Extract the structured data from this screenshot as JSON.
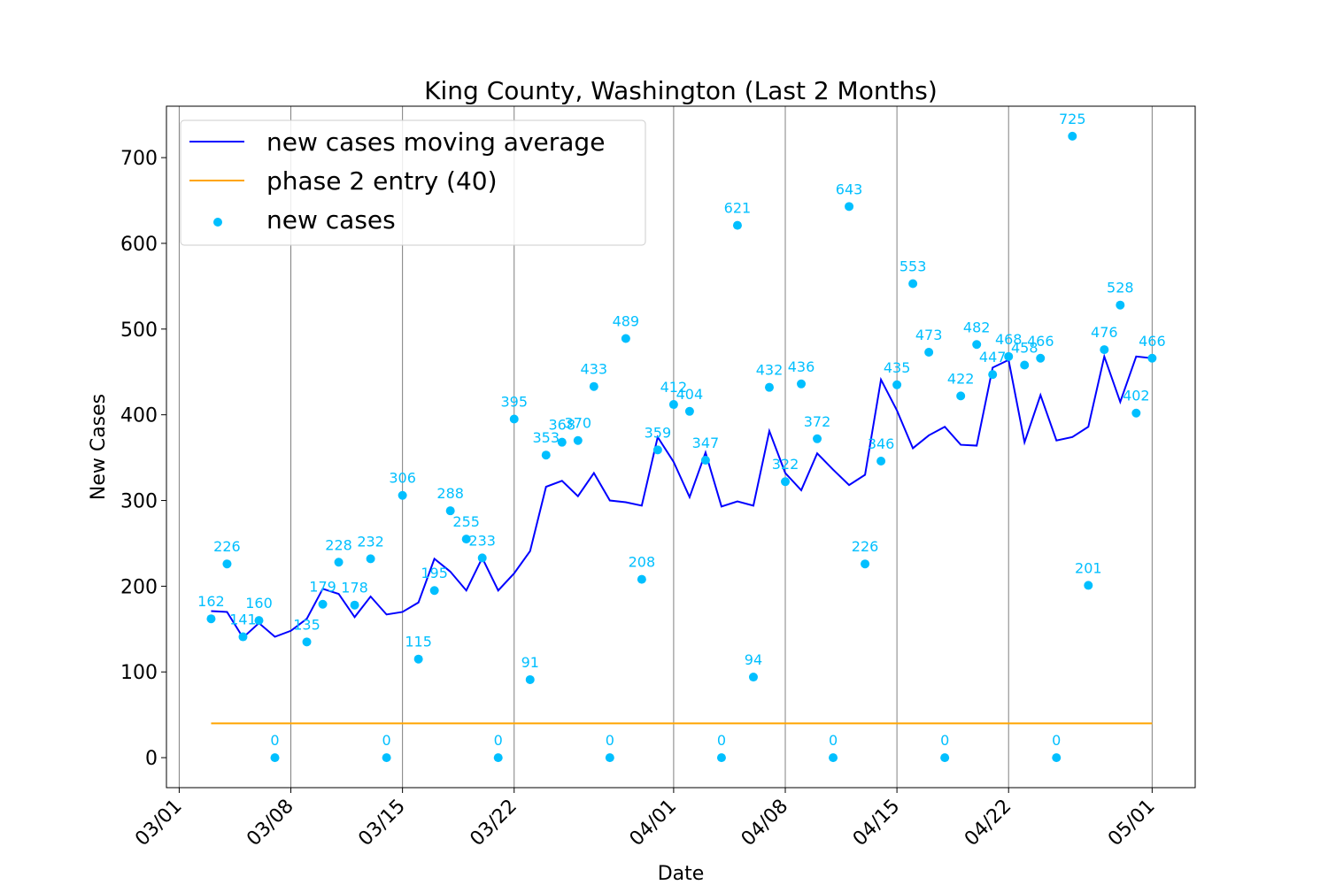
{
  "chart_data": {
    "type": "line",
    "title": "King County, Washington (Last 2 Months)",
    "xlabel": "Date",
    "ylabel": "New Cases",
    "x_is_date": true,
    "year": 2020,
    "xlim": [
      "2020-03-01",
      "2020-05-01"
    ],
    "ylim": [
      -35,
      760
    ],
    "yticks": [
      0,
      100,
      200,
      300,
      400,
      500,
      600,
      700
    ],
    "xticks": [
      "2020-03-01",
      "2020-03-08",
      "2020-03-15",
      "2020-03-22",
      "2020-04-01",
      "2020-04-08",
      "2020-04-15",
      "2020-04-22",
      "2020-05-01"
    ],
    "xtick_labels": [
      "03/01",
      "03/08",
      "03/15",
      "03/22",
      "04/01",
      "04/08",
      "04/15",
      "04/22",
      "05/01"
    ],
    "grid": "vertical at x ticks",
    "legend_position": "top-left",
    "colors": {
      "moving_average": "#0000ff",
      "phase2": "#ffa500",
      "new_cases": "#00bfff",
      "grid": "#808080"
    },
    "series": [
      {
        "name": "new cases moving average",
        "kind": "line",
        "x": [
          "2020-03-03",
          "2020-03-04",
          "2020-03-05",
          "2020-03-06",
          "2020-03-07",
          "2020-03-08",
          "2020-03-09",
          "2020-03-10",
          "2020-03-11",
          "2020-03-12",
          "2020-03-13",
          "2020-03-14",
          "2020-03-15",
          "2020-03-16",
          "2020-03-17",
          "2020-03-18",
          "2020-03-19",
          "2020-03-20",
          "2020-03-21",
          "2020-03-22",
          "2020-03-23",
          "2020-03-24",
          "2020-03-25",
          "2020-03-26",
          "2020-03-27",
          "2020-03-28",
          "2020-03-29",
          "2020-03-30",
          "2020-03-31",
          "2020-04-01",
          "2020-04-02",
          "2020-04-03",
          "2020-04-04",
          "2020-04-05",
          "2020-04-06",
          "2020-04-07",
          "2020-04-08",
          "2020-04-09",
          "2020-04-10",
          "2020-04-11",
          "2020-04-12",
          "2020-04-13",
          "2020-04-14",
          "2020-04-15",
          "2020-04-16",
          "2020-04-17",
          "2020-04-18",
          "2020-04-19",
          "2020-04-20",
          "2020-04-21",
          "2020-04-22",
          "2020-04-23",
          "2020-04-24",
          "2020-04-25",
          "2020-04-26",
          "2020-04-27",
          "2020-04-28",
          "2020-04-29",
          "2020-04-30",
          "2020-05-01"
        ],
        "y": [
          171,
          170,
          140,
          157,
          141,
          148,
          162,
          197,
          191,
          164,
          188,
          167,
          170,
          181,
          232,
          217,
          195,
          233,
          195,
          215,
          241,
          316,
          323,
          305,
          332,
          300,
          298,
          294,
          374,
          345,
          304,
          356,
          293,
          299,
          294,
          381,
          332,
          312,
          355,
          336,
          318,
          330,
          441,
          405,
          361,
          376,
          386,
          365,
          364,
          455,
          464,
          368,
          423,
          370,
          374,
          386,
          468,
          415,
          468,
          466
        ]
      },
      {
        "name": "phase 2 entry (40)",
        "kind": "line",
        "x": [
          "2020-03-03",
          "2020-05-01"
        ],
        "y": [
          40,
          40
        ]
      },
      {
        "name": "new cases",
        "kind": "scatter",
        "x": [
          "2020-03-03",
          "2020-03-04",
          "2020-03-05",
          "2020-03-06",
          "2020-03-07",
          "2020-03-09",
          "2020-03-10",
          "2020-03-11",
          "2020-03-12",
          "2020-03-13",
          "2020-03-14",
          "2020-03-15",
          "2020-03-16",
          "2020-03-17",
          "2020-03-18",
          "2020-03-19",
          "2020-03-20",
          "2020-03-21",
          "2020-03-22",
          "2020-03-23",
          "2020-03-24",
          "2020-03-25",
          "2020-03-26",
          "2020-03-27",
          "2020-03-28",
          "2020-03-29",
          "2020-03-30",
          "2020-03-31",
          "2020-04-01",
          "2020-04-02",
          "2020-04-03",
          "2020-04-04",
          "2020-04-05",
          "2020-04-06",
          "2020-04-07",
          "2020-04-08",
          "2020-04-09",
          "2020-04-10",
          "2020-04-11",
          "2020-04-12",
          "2020-04-13",
          "2020-04-14",
          "2020-04-15",
          "2020-04-16",
          "2020-04-17",
          "2020-04-18",
          "2020-04-19",
          "2020-04-20",
          "2020-04-21",
          "2020-04-22",
          "2020-04-23",
          "2020-04-24",
          "2020-04-25",
          "2020-04-26",
          "2020-04-27",
          "2020-04-28",
          "2020-04-29",
          "2020-04-30",
          "2020-05-01"
        ],
        "y": [
          162,
          226,
          141,
          160,
          0,
          135,
          179,
          228,
          178,
          232,
          0,
          306,
          115,
          195,
          288,
          255,
          233,
          0,
          395,
          91,
          353,
          368,
          370,
          433,
          0,
          489,
          208,
          359,
          412,
          404,
          347,
          0,
          621,
          94,
          432,
          322,
          436,
          372,
          0,
          643,
          226,
          346,
          435,
          553,
          473,
          0,
          422,
          482,
          447,
          468,
          458,
          466,
          0,
          725,
          201,
          476,
          528,
          402,
          466
        ]
      }
    ]
  }
}
